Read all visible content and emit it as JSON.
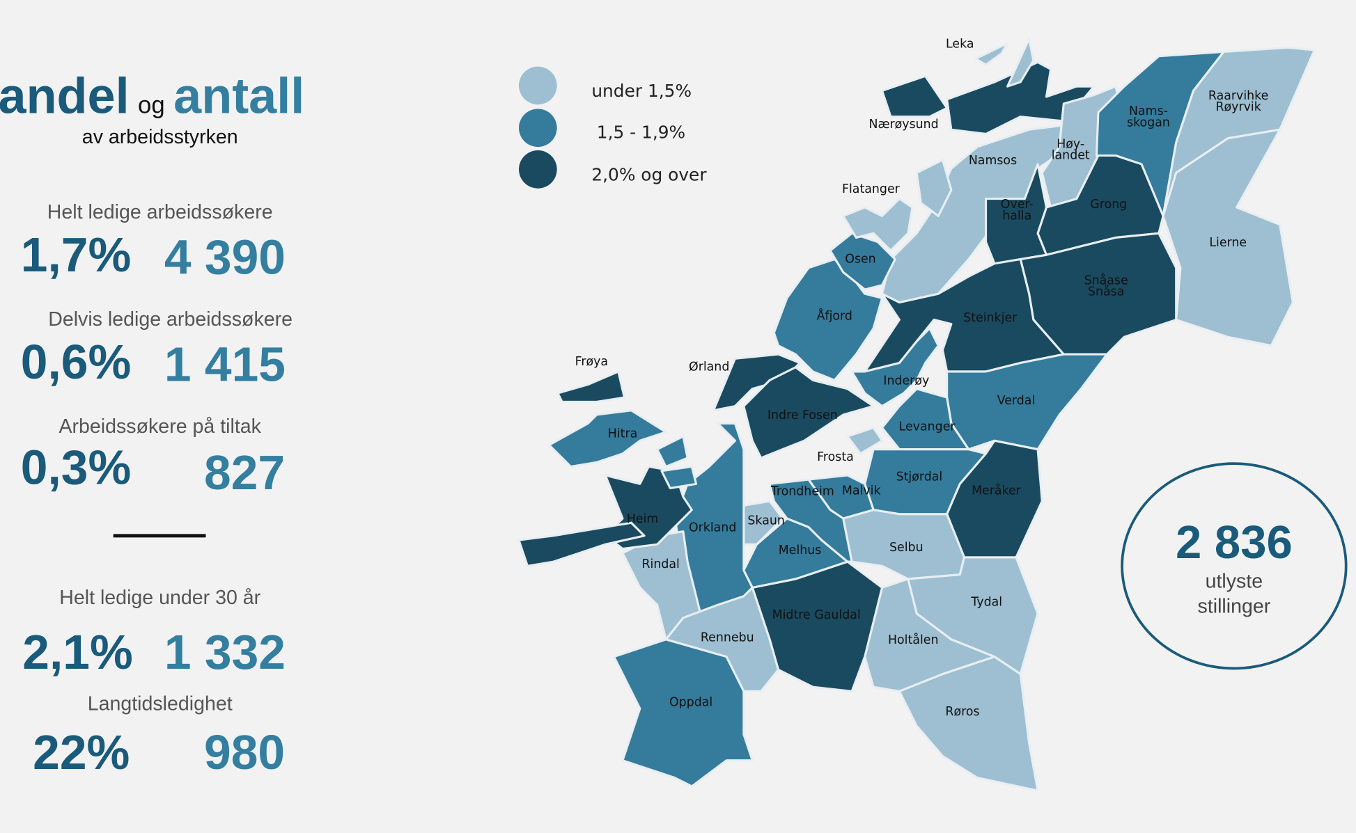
{
  "header": {
    "title_andel": "andel",
    "title_og": "og",
    "title_antall": "antall",
    "subtitle": "av arbeidsstyrken"
  },
  "stats": [
    {
      "label": "Helt ledige arbeidssøkere",
      "percent": "1,7%",
      "count": "4 390"
    },
    {
      "label": "Delvis ledige arbeidssøkere",
      "percent": "0,6%",
      "count": "1 415"
    },
    {
      "label": "Arbeidssøkere på tiltak",
      "percent": "0,3%",
      "count": "827"
    },
    {
      "label": "Helt ledige under 30 år",
      "percent": "2,1%",
      "count": "1 332"
    },
    {
      "label": "Langtidsledighet",
      "percent": "22%",
      "count": "980"
    }
  ],
  "legend": [
    {
      "label": "under 1,5%",
      "color": "#9dbfd1"
    },
    {
      "label": "1,5 - 1,9%",
      "color": "#347b9c"
    },
    {
      "label": "2,0% og over",
      "color": "#1a4a60"
    }
  ],
  "postings": {
    "count": "2 836",
    "line1": "utlyste",
    "line2": "stillinger"
  },
  "municipalities": [
    {
      "name": "Leka",
      "level": 0
    },
    {
      "name": "Nærøysund",
      "level": 2
    },
    {
      "name": "Namsos",
      "level": 0
    },
    {
      "name": "Høylandet",
      "level": 0,
      "label": [
        "Høy-",
        "landet"
      ]
    },
    {
      "name": "Namsskogan",
      "level": 1,
      "label": [
        "Nams-",
        "skogan"
      ]
    },
    {
      "name": "Raarvihke Røyrvik",
      "level": 0,
      "label": [
        "Raarvihke",
        "Røyrvik"
      ]
    },
    {
      "name": "Lierne",
      "level": 0
    },
    {
      "name": "Grong",
      "level": 2
    },
    {
      "name": "Overhalla",
      "level": 2,
      "label": [
        "Over-",
        "halla"
      ]
    },
    {
      "name": "Snåase Snåsa",
      "level": 2,
      "label": [
        "Snåase",
        "Snåsa"
      ]
    },
    {
      "name": "Steinkjer",
      "level": 2
    },
    {
      "name": "Inderøy",
      "level": 1
    },
    {
      "name": "Verdal",
      "level": 1
    },
    {
      "name": "Levanger",
      "level": 1
    },
    {
      "name": "Stjørdal",
      "level": 1
    },
    {
      "name": "Meråker",
      "level": 2
    },
    {
      "name": "Selbu",
      "level": 0
    },
    {
      "name": "Tydal",
      "level": 0
    },
    {
      "name": "Røros",
      "level": 0
    },
    {
      "name": "Holtålen",
      "level": 0
    },
    {
      "name": "Midtre Gauldal",
      "level": 2
    },
    {
      "name": "Melhus",
      "level": 1
    },
    {
      "name": "Malvik",
      "level": 1
    },
    {
      "name": "Trondheim",
      "level": 1
    },
    {
      "name": "Skaun",
      "level": 0
    },
    {
      "name": "Orkland",
      "level": 1
    },
    {
      "name": "Rindal",
      "level": 0
    },
    {
      "name": "Rennebu",
      "level": 0
    },
    {
      "name": "Oppdal",
      "level": 1
    },
    {
      "name": "Heim",
      "level": 2
    },
    {
      "name": "Hitra",
      "level": 1
    },
    {
      "name": "Frøya",
      "level": 2
    },
    {
      "name": "Ørland",
      "level": 2
    },
    {
      "name": "Indre Fosen",
      "level": 2
    },
    {
      "name": "Åfjord",
      "level": 1
    },
    {
      "name": "Osen",
      "level": 1
    },
    {
      "name": "Flatanger",
      "level": 0
    },
    {
      "name": "Frosta",
      "level": 0
    }
  ]
}
